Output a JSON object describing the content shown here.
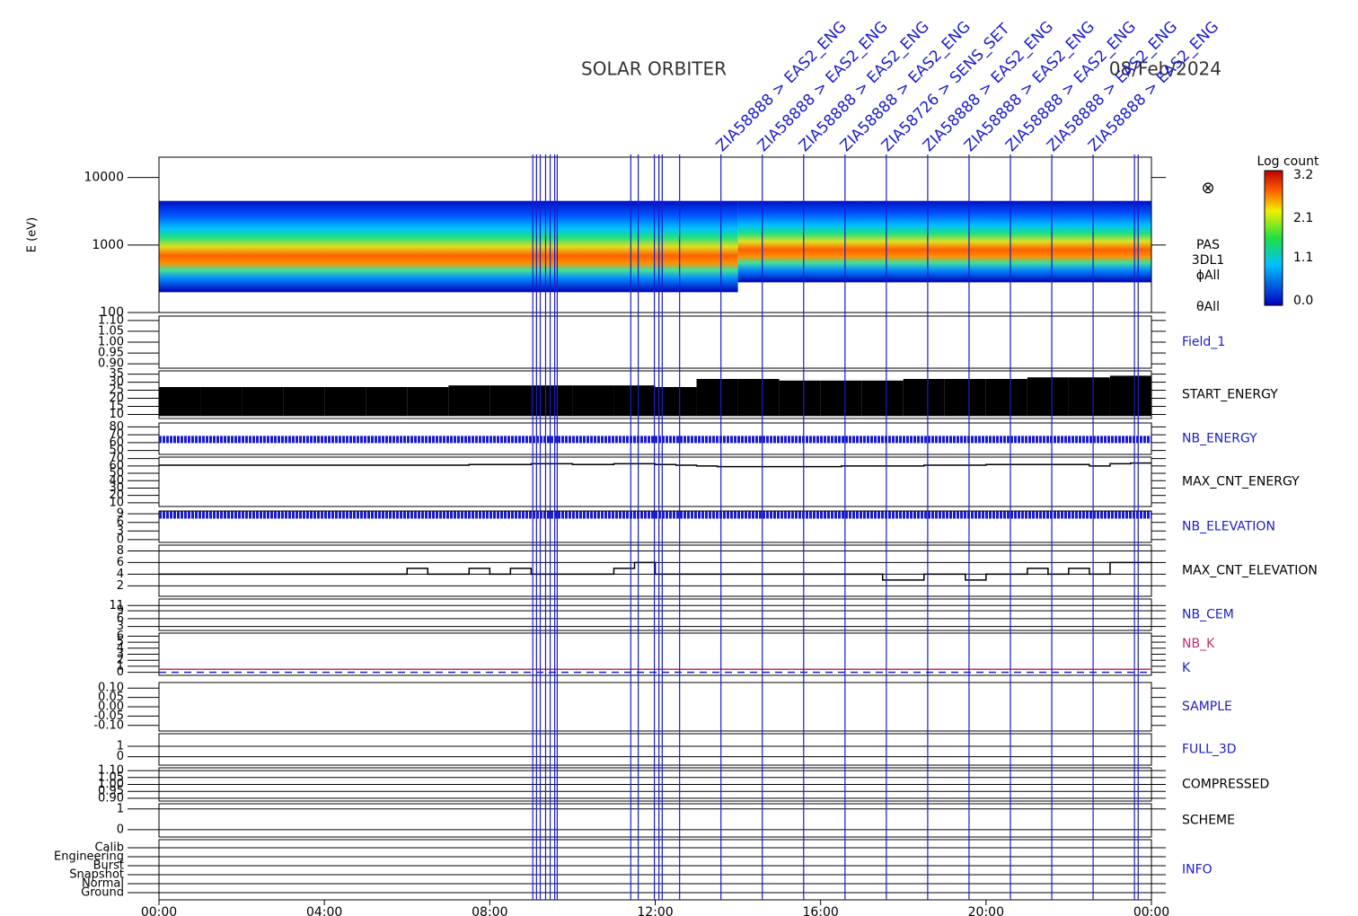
{
  "header": {
    "title": "SOLAR ORBITER",
    "date": "08/Feb/2024"
  },
  "chart_data": {
    "type": "multi-panel",
    "xlim": [
      0,
      24
    ],
    "xticks": [
      {
        "value": 0,
        "label": "00:00"
      },
      {
        "value": 4,
        "label": "04:00"
      },
      {
        "value": 8,
        "label": "08:00"
      },
      {
        "value": 12,
        "label": "12:00"
      },
      {
        "value": 16,
        "label": "16:00"
      },
      {
        "value": 20,
        "label": "20:00"
      },
      {
        "value": 24,
        "label": "00:00"
      }
    ],
    "event_color": "#1c1ccc",
    "events": [
      {
        "x": 9.04
      },
      {
        "x": 9.13
      },
      {
        "x": 9.22
      },
      {
        "x": 9.35
      },
      {
        "x": 9.46
      },
      {
        "x": 9.57
      },
      {
        "x": 9.63
      },
      {
        "x": 11.41
      },
      {
        "x": 11.59
      },
      {
        "x": 11.98
      },
      {
        "x": 12.09
      },
      {
        "x": 12.17
      },
      {
        "x": 12.59
      },
      {
        "x": 13.59,
        "label": "ZIA58888 > EAS2_ENG"
      },
      {
        "x": 14.59,
        "label": "ZIA58888 > EAS2_ENG"
      },
      {
        "x": 15.59,
        "label": "ZIA58888 > EAS2_ENG"
      },
      {
        "x": 16.59,
        "label": "ZIA58888 > EAS2_ENG"
      },
      {
        "x": 17.59,
        "label": "ZIA58726 > SENS_SET"
      },
      {
        "x": 18.59,
        "label": "ZIA58888 > EAS2_ENG"
      },
      {
        "x": 19.59,
        "label": "ZIA58888 > EAS2_ENG"
      },
      {
        "x": 20.59,
        "label": "ZIA58888 > EAS2_ENG"
      },
      {
        "x": 21.59,
        "label": "ZIA58888 > EAS2_ENG"
      },
      {
        "x": 22.59,
        "label": "ZIA58888 > EAS2_ENG"
      },
      {
        "x": 23.59
      },
      {
        "x": 23.68
      }
    ],
    "colorbar": {
      "title": "Log count",
      "lim": [
        0,
        3.2
      ],
      "ticks": [
        {
          "value": 0,
          "label": "0.0"
        },
        1.1,
        2.1,
        3.2
      ]
    },
    "panels": [
      {
        "type": "spectrogram",
        "ylabel": "E (eV)",
        "log": true,
        "ylim": [
          100,
          20000
        ],
        "yticks": [
          100,
          1000,
          10000
        ],
        "side_labels": [
          "PAS",
          "3DL1",
          "ϕAll",
          "θAll"
        ],
        "symbol": "⊗"
      },
      {
        "type": "empty",
        "label": "Field_1",
        "label_color": "#1c1ccc",
        "ylim": [
          0.88,
          1.12
        ],
        "yticks": [
          {
            "value": 0.9,
            "label": "0.90"
          },
          {
            "value": 0.95,
            "label": "0.95"
          },
          {
            "value": 1,
            "label": "1.00"
          },
          {
            "value": 1.05,
            "label": "1.05"
          },
          {
            "value": 1.1,
            "label": "1.10"
          }
        ]
      },
      {
        "type": "bar",
        "label": "START_ENERGY",
        "label_color": "#000000",
        "color": "#000000",
        "ylim": [
          7.5,
          37
        ],
        "yticks": [
          10,
          15,
          20,
          25,
          30,
          35
        ],
        "values": [
          27,
          27,
          27,
          27,
          27,
          27,
          27,
          28,
          28,
          28,
          28,
          28,
          27,
          32,
          32,
          31,
          31,
          31,
          32,
          32,
          32,
          33,
          33,
          34
        ]
      },
      {
        "type": "hline",
        "label": "NB_ENERGY",
        "label_color": "#1c1ccc",
        "color": "#1c1ccc",
        "ylim": [
          45,
          85
        ],
        "yticks": [
          50,
          60,
          70,
          80
        ],
        "value": 64
      },
      {
        "type": "line",
        "label": "MAX_CNT_ENERGY",
        "label_color": "#000000",
        "color": "#000000",
        "ylim": [
          5,
          72
        ],
        "yticks": [
          10,
          20,
          30,
          40,
          50,
          60,
          70
        ],
        "values": [
          61,
          61,
          61,
          61,
          61,
          61,
          61,
          61,
          61,
          61,
          61,
          61,
          61,
          61,
          61,
          62,
          62,
          62,
          63,
          63,
          62,
          62,
          63,
          63,
          62,
          61,
          60,
          59,
          59,
          59,
          59,
          59,
          59,
          60,
          60,
          60,
          60,
          61,
          61,
          61,
          62,
          62,
          62,
          62,
          62,
          60,
          63,
          64
        ]
      },
      {
        "type": "hline",
        "label": "NB_ELEVATION",
        "label_color": "#1c1ccc",
        "color": "#1c1ccc",
        "ylim": [
          -1,
          10
        ],
        "yticks": [
          0,
          3,
          6,
          9
        ],
        "value": 8.6
      },
      {
        "type": "line",
        "label": "MAX_CNT_ELEVATION",
        "label_color": "#000000",
        "color": "#000000",
        "grid": true,
        "ylim": [
          0.2,
          9
        ],
        "yticks": [
          2,
          4,
          6,
          8
        ],
        "values": [
          4,
          4,
          4,
          4,
          4,
          4,
          4,
          4,
          4,
          4,
          4,
          4,
          5,
          4,
          4,
          5,
          4,
          5,
          4,
          4,
          4,
          4,
          5,
          6,
          4,
          4,
          4,
          4,
          4,
          4,
          4,
          4,
          4,
          4,
          4,
          3,
          3,
          4,
          4,
          3,
          4,
          4,
          5,
          4,
          5,
          4,
          6,
          6
        ]
      },
      {
        "type": "empty",
        "label": "NB_CEM",
        "label_color": "#1c1ccc",
        "grid": true,
        "ylim": [
          1.5,
          13.5
        ],
        "yticks": [
          3,
          6,
          9,
          11
        ]
      },
      {
        "type": "lines",
        "ylim": [
          -0.5,
          6.5
        ],
        "yticks": [
          0,
          1,
          2,
          3,
          4,
          5,
          6
        ],
        "series": [
          {
            "name": "NB_K",
            "color": "#c0306a",
            "value": 0.5
          },
          {
            "name": "K",
            "color": "#1c1ccc",
            "value": 0,
            "dashed": true
          }
        ]
      },
      {
        "type": "empty",
        "label": "SAMPLE",
        "label_color": "#1c1ccc",
        "ylim": [
          -0.13,
          0.13
        ],
        "yticks": [
          {
            "value": -0.1,
            "label": "-0.10"
          },
          {
            "value": -0.05,
            "label": "-0.05"
          },
          {
            "value": 0,
            "label": "0.00"
          },
          {
            "value": 0.05,
            "label": "0.05"
          },
          {
            "value": 0.1,
            "label": "0.10"
          }
        ]
      },
      {
        "type": "empty",
        "label": "FULL_3D",
        "label_color": "#1c1ccc",
        "grid": true,
        "ylim": [
          -0.8,
          2.2
        ],
        "yticks": [
          0,
          1
        ]
      },
      {
        "type": "empty",
        "label": "COMPRESSED",
        "label_color": "#000000",
        "grid": true,
        "ylim": [
          0.88,
          1.12
        ],
        "yticks": [
          {
            "value": 0.9,
            "label": "0.90"
          },
          {
            "value": 0.95,
            "label": "0.95"
          },
          {
            "value": 1,
            "label": "1.00"
          },
          {
            "value": 1.05,
            "label": "1.05"
          },
          {
            "value": 1.1,
            "label": "1.10"
          }
        ]
      },
      {
        "type": "empty",
        "label": "SCHEME",
        "label_color": "#000000",
        "grid": true,
        "ylim": [
          -0.35,
          1.25
        ],
        "yticks": [
          0,
          1
        ]
      },
      {
        "type": "empty",
        "label": "INFO",
        "label_color": "#1c1ccc",
        "grid": true,
        "ylim": [
          -0.8,
          5.9
        ],
        "yticks": [
          {
            "value": 0,
            "label": "Ground"
          },
          {
            "value": 1,
            "label": "Normal"
          },
          {
            "value": 2,
            "label": "Snapshot"
          },
          {
            "value": 3,
            "label": "Burst"
          },
          {
            "value": 4,
            "label": "Engineering"
          },
          {
            "value": 5,
            "label": "Calib"
          }
        ]
      }
    ]
  }
}
